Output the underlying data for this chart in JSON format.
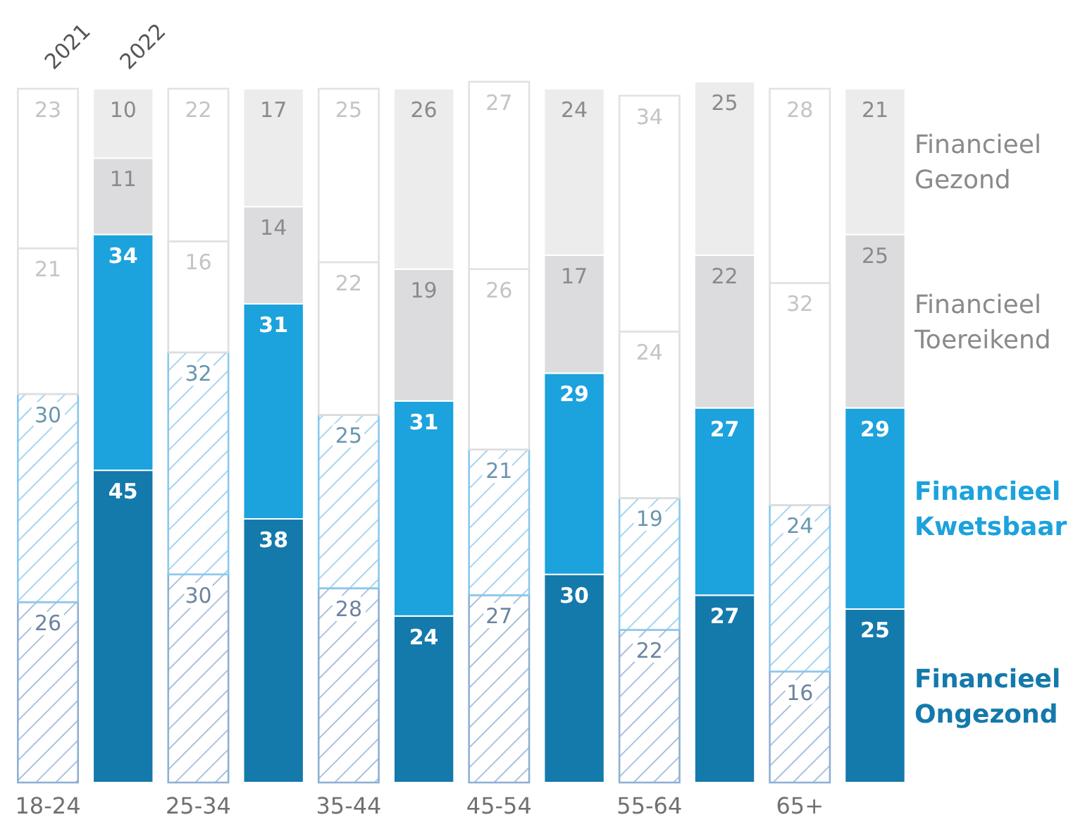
{
  "chart_data": {
    "type": "bar",
    "stacked": true,
    "data_labels": true,
    "categories": [
      "18-24",
      null,
      "25-34",
      null,
      "35-44",
      null,
      "45-54",
      null,
      "55-64",
      null,
      "65+",
      null
    ],
    "annotations": [
      "2021",
      "2022"
    ],
    "series": [
      {
        "color": "#8fb0d4",
        "values": [
          26,
          null,
          30,
          null,
          28,
          null,
          27,
          null,
          22,
          null,
          16,
          null
        ]
      },
      {
        "color": "#8cc8ec",
        "values": [
          30,
          null,
          32,
          null,
          25,
          null,
          21,
          null,
          19,
          null,
          24,
          null
        ]
      },
      {
        "color": "#dedede",
        "values": [
          21,
          null,
          16,
          null,
          22,
          null,
          26,
          null,
          24,
          null,
          32,
          null
        ]
      },
      {
        "color": "#e2e2e2",
        "values": [
          23,
          null,
          22,
          null,
          25,
          null,
          27,
          null,
          34,
          null,
          28,
          null
        ]
      },
      {
        "name": "Financieel Ongezond",
        "color": "#1479ab",
        "values": [
          null,
          45,
          null,
          38,
          null,
          24,
          null,
          30,
          null,
          27,
          null,
          25
        ]
      },
      {
        "name": "Financieel Kwetsbaar",
        "color": "#1ca2dc",
        "values": [
          null,
          34,
          null,
          31,
          null,
          31,
          null,
          29,
          null,
          27,
          null,
          29
        ]
      },
      {
        "name": "Financieel Toereikend",
        "color": "#dcdcdf",
        "values": [
          null,
          11,
          null,
          14,
          null,
          19,
          null,
          17,
          null,
          22,
          null,
          25
        ]
      },
      {
        "name": "Financieel Gezond",
        "color": "#ececec",
        "values": [
          null,
          10,
          null,
          17,
          null,
          26,
          null,
          24,
          null,
          25,
          null,
          21
        ]
      }
    ]
  }
}
